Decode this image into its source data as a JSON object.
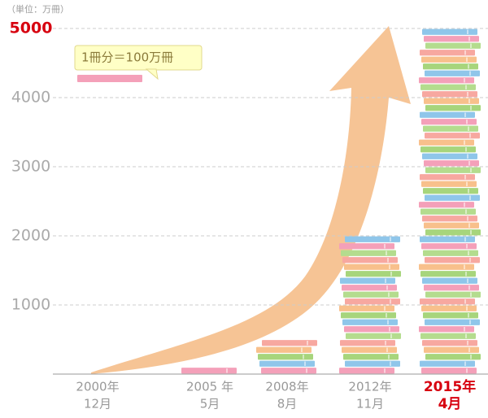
{
  "chart_data": {
    "type": "bar",
    "unit_label": "（単位：万冊）",
    "legend_text": "1冊分＝100万冊",
    "categories": [
      [
        "2000年",
        "12月"
      ],
      [
        "2005 年",
        "5月"
      ],
      [
        "2008年",
        "8月"
      ],
      [
        "2012年",
        "11月"
      ],
      [
        "2015年",
        "4月"
      ]
    ],
    "values": [
      0,
      100,
      500,
      2000,
      5000
    ],
    "book_colors": [
      "#f4a0b9",
      "#8fc6ea",
      "#a7d57c",
      "#f8c08c",
      "#f7a8a0",
      "#b4dc8e"
    ],
    "highlight_color": "#d7000f",
    "ylim": [
      0,
      5000
    ],
    "yticks": [
      1000,
      2000,
      3000,
      4000,
      5000
    ],
    "grid": true
  }
}
